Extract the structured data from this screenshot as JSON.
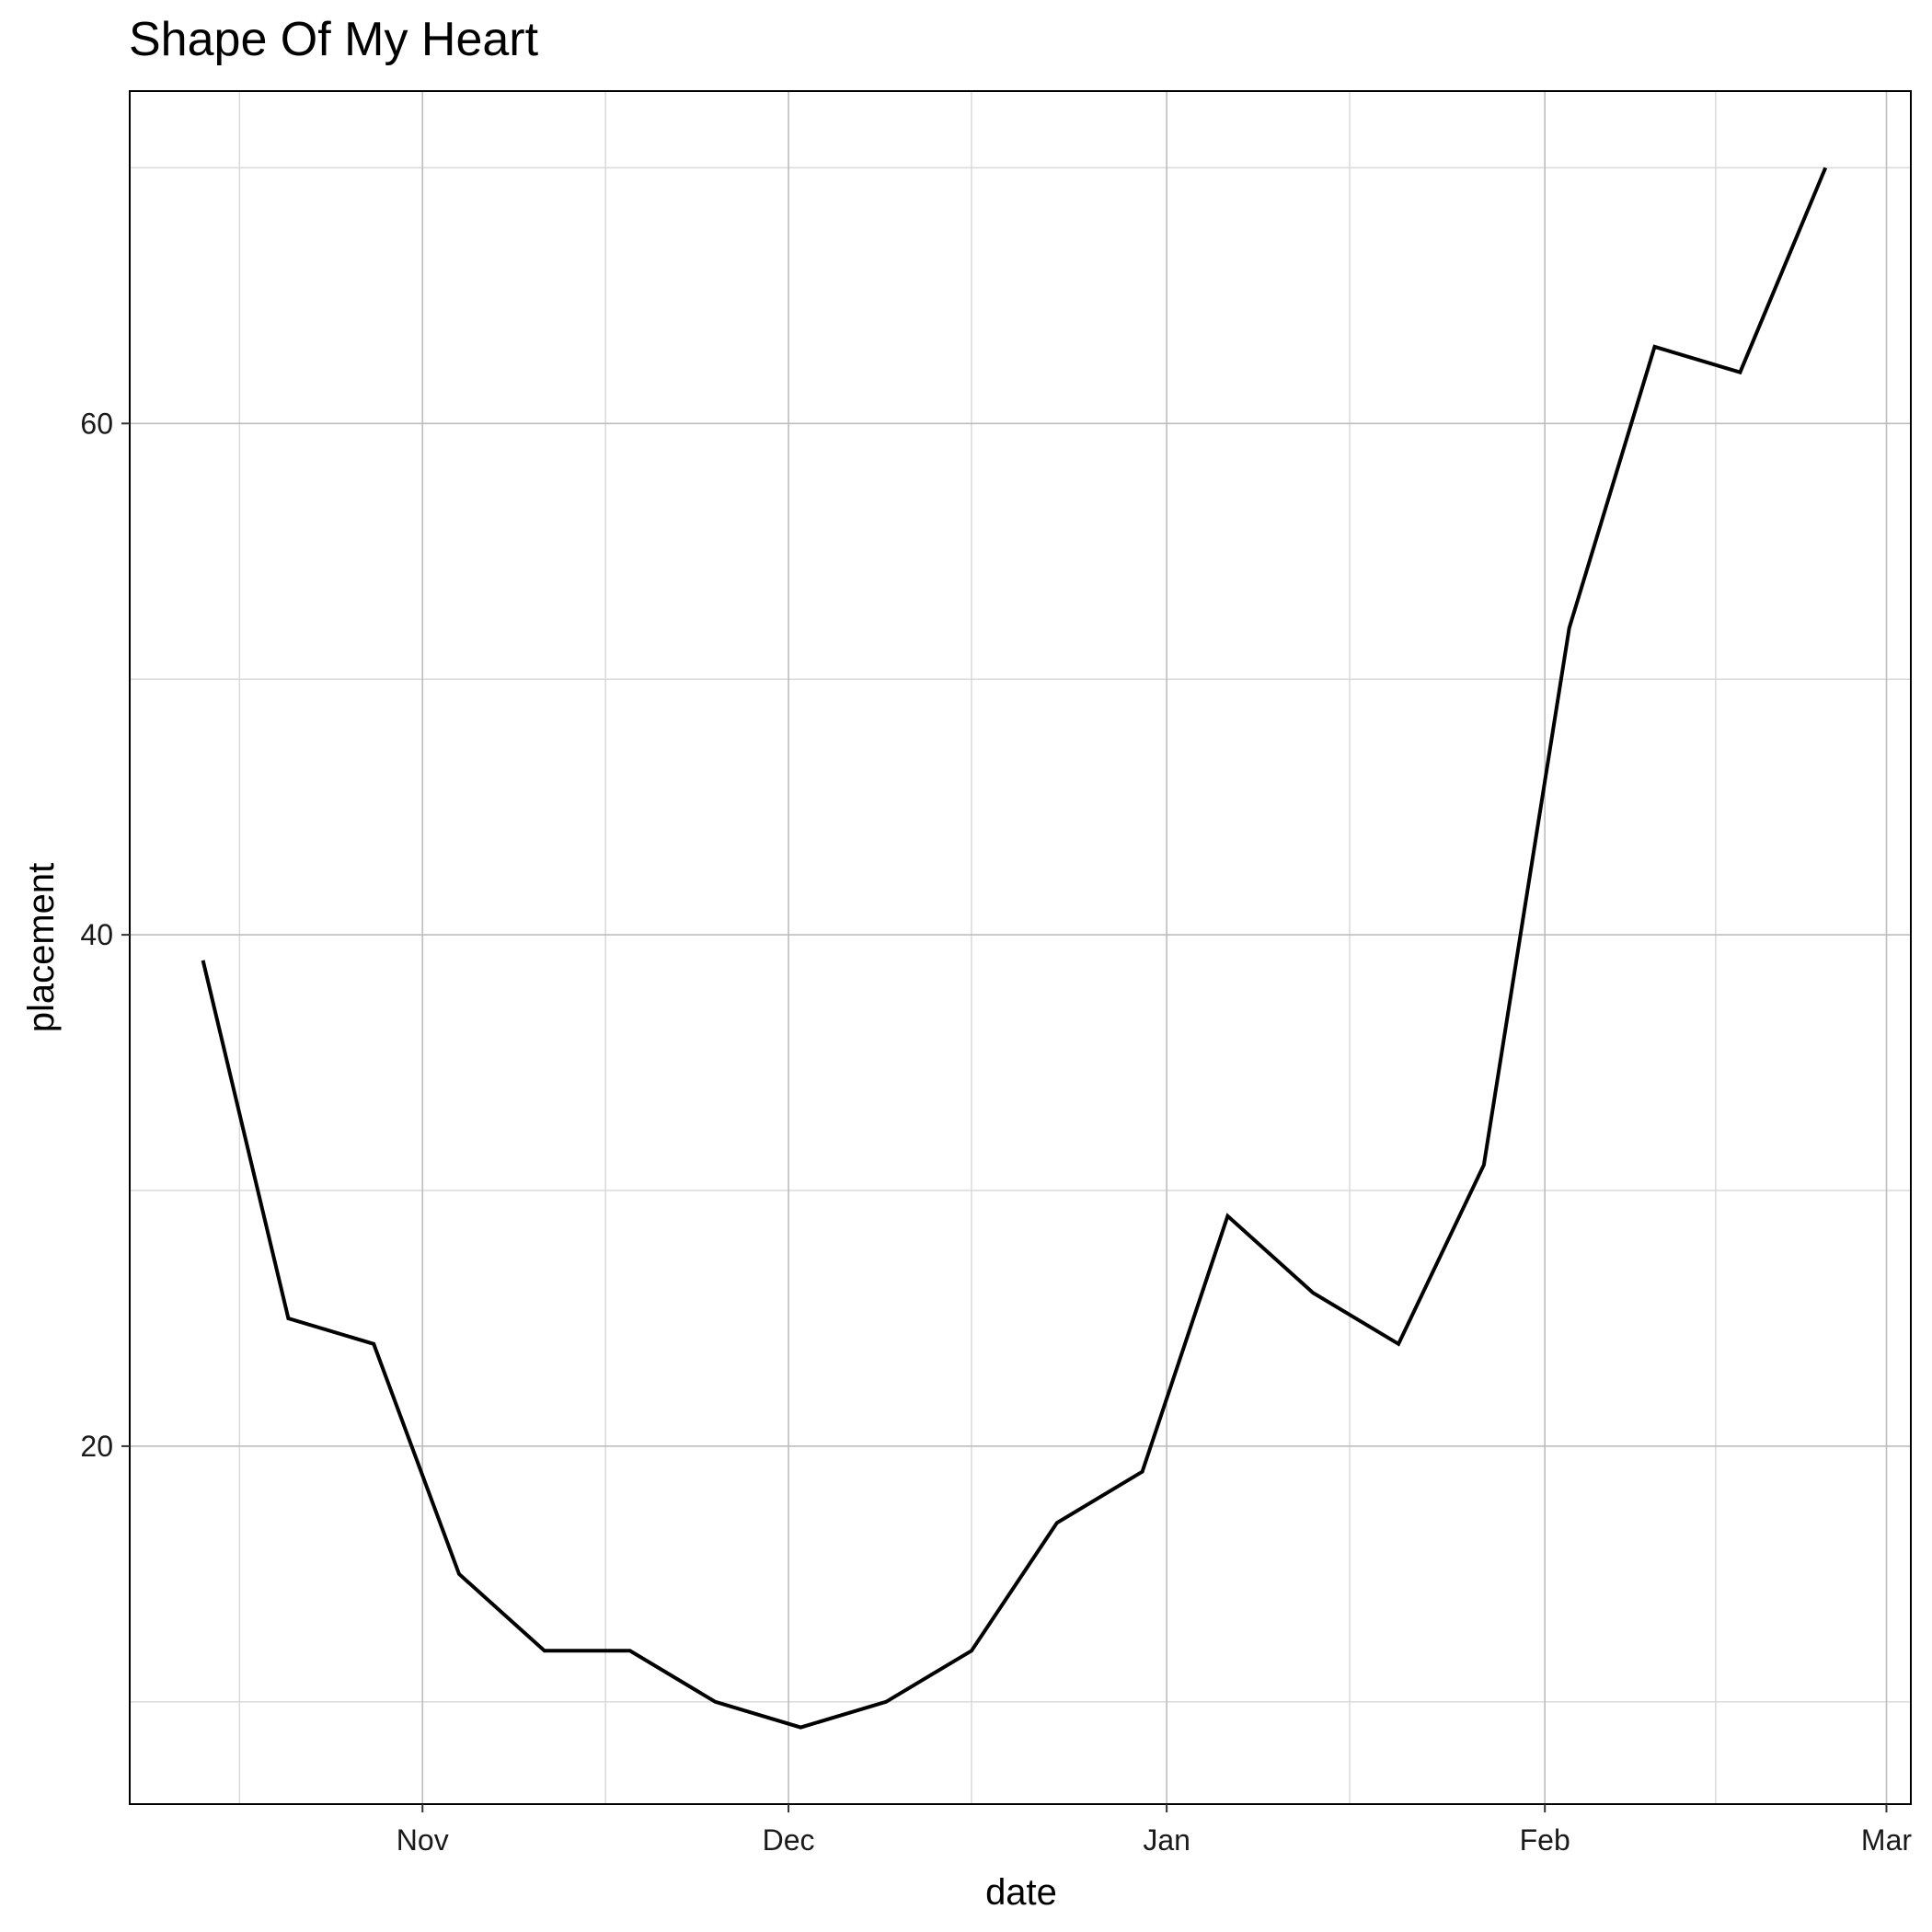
{
  "chart_data": {
    "type": "line",
    "title": "Shape Of My Heart",
    "xlabel": "date",
    "ylabel": "placement",
    "x_axis_type": "date",
    "xlim": [
      "2000-10-08",
      "2001-03-03"
    ],
    "ylim": [
      6,
      73
    ],
    "x_ticks": [
      {
        "date": "2000-11-01",
        "label": "Nov"
      },
      {
        "date": "2000-12-01",
        "label": "Dec"
      },
      {
        "date": "2001-01-01",
        "label": "Jan"
      },
      {
        "date": "2001-02-01",
        "label": "Feb"
      },
      {
        "date": "2001-03-01",
        "label": "Mar"
      }
    ],
    "x_minor_ticks": [
      "2000-10-17",
      "2000-11-16",
      "2000-12-16",
      "2001-01-16",
      "2001-02-15"
    ],
    "y_ticks": [
      20,
      40,
      60
    ],
    "y_minor_ticks": [
      10,
      30,
      50,
      70
    ],
    "grid": true,
    "line_color": "#000000",
    "x": [
      "2000-10-14",
      "2000-10-21",
      "2000-10-28",
      "2000-11-04",
      "2000-11-11",
      "2000-11-18",
      "2000-11-25",
      "2000-12-02",
      "2000-12-09",
      "2000-12-16",
      "2000-12-23",
      "2000-12-30",
      "2001-01-06",
      "2001-01-13",
      "2001-01-20",
      "2001-01-27",
      "2001-02-03",
      "2001-02-10",
      "2001-02-17",
      "2001-02-24"
    ],
    "y": [
      39,
      25,
      24,
      15,
      12,
      12,
      10,
      9,
      10,
      12,
      17,
      19,
      29,
      26,
      24,
      31,
      52,
      63,
      62,
      70
    ]
  }
}
